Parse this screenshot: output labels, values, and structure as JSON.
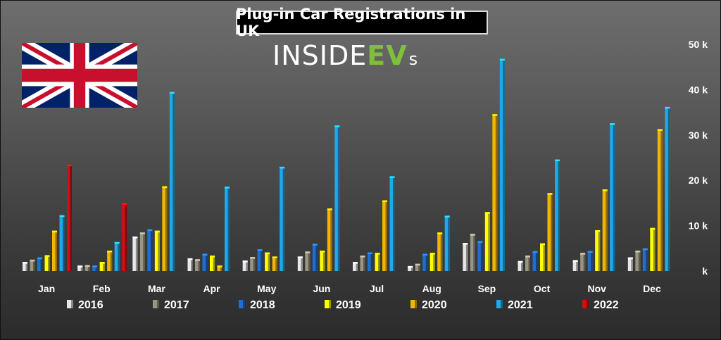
{
  "header": {
    "title": "Plug-in Car Registrations in UK",
    "logo_part1": "INSIDE",
    "logo_part2": "EV",
    "logo_part3": "s"
  },
  "flag": {
    "icon": "uk-flag-icon"
  },
  "chart_data": {
    "type": "bar",
    "title": "Plug-in Car Registrations in UK",
    "categories": [
      "Jan",
      "Feb",
      "Mar",
      "Apr",
      "May",
      "Jun",
      "Jul",
      "Aug",
      "Sep",
      "Oct",
      "Nov",
      "Dec"
    ],
    "ylim": [
      0,
      50000
    ],
    "yticks": [
      0,
      10000,
      20000,
      30000,
      40000,
      50000
    ],
    "ytick_labels": [
      "k",
      "10 k",
      "20 k",
      "30 k",
      "40 k",
      "50 k"
    ],
    "legend_position": "bottom",
    "grid": false,
    "series": [
      {
        "name": "2016",
        "color": "#e8e8e8",
        "values": [
          2000,
          1200,
          7600,
          2800,
          2300,
          3200,
          2000,
          1100,
          6200,
          2200,
          2400,
          3000
        ]
      },
      {
        "name": "2017",
        "color": "#9a9580",
        "values": [
          2500,
          1300,
          8500,
          2600,
          3100,
          4300,
          3400,
          1600,
          8200,
          3400,
          4000,
          4500
        ]
      },
      {
        "name": "2018",
        "color": "#1f6fd0",
        "values": [
          3000,
          1200,
          9200,
          3800,
          4800,
          6000,
          4100,
          3800,
          6600,
          4400,
          4400,
          5000
        ]
      },
      {
        "name": "2019",
        "color": "#ffff00",
        "values": [
          3500,
          2000,
          8900,
          3400,
          4100,
          4500,
          4000,
          4000,
          13000,
          6100,
          9000,
          9500
        ]
      },
      {
        "name": "2020",
        "color": "#f2b500",
        "values": [
          8900,
          4500,
          18700,
          1200,
          3200,
          13800,
          15600,
          8500,
          34600,
          17200,
          18000,
          31300
        ]
      },
      {
        "name": "2021",
        "color": "#20a8e8",
        "values": [
          12300,
          6400,
          39500,
          18600,
          23000,
          32100,
          20900,
          12200,
          46800,
          24600,
          32600,
          36200
        ]
      },
      {
        "name": "2022",
        "color": "#d01010",
        "values": [
          23500,
          15000,
          null,
          null,
          null,
          null,
          null,
          null,
          null,
          null,
          null,
          null
        ]
      }
    ]
  }
}
